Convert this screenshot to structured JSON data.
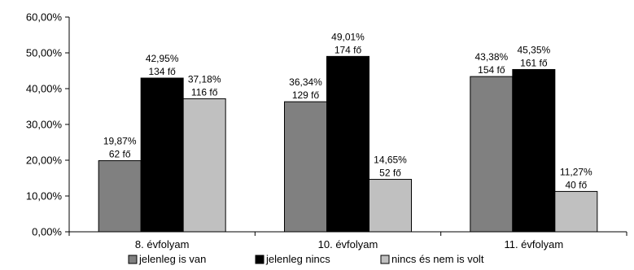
{
  "chart_data": {
    "type": "bar",
    "categories": [
      "8. évfolyam",
      "10. évfolyam",
      "11. évfolyam"
    ],
    "series": [
      {
        "name": "jelenleg is van",
        "color": "#808080",
        "values": [
          19.87,
          36.34,
          43.38
        ],
        "labels": [
          [
            "19,87%",
            "62 fő"
          ],
          [
            "36,34%",
            "129 fő"
          ],
          [
            "43,38%",
            "154 fő"
          ]
        ]
      },
      {
        "name": "jelenleg nincs",
        "color": "#000000",
        "values": [
          42.95,
          49.01,
          45.35
        ],
        "labels": [
          [
            "42,95%",
            "134 fő"
          ],
          [
            "49,01%",
            "174 fő"
          ],
          [
            "45,35%",
            "161 fő"
          ]
        ]
      },
      {
        "name": "nincs és nem is volt",
        "color": "#c0c0c0",
        "values": [
          37.18,
          14.65,
          11.27
        ],
        "labels": [
          [
            "37,18%",
            "116 fő"
          ],
          [
            "14,65%",
            "52 fő"
          ],
          [
            "11,27%",
            "40 fő"
          ]
        ]
      }
    ],
    "ylim": [
      0,
      60
    ],
    "yticks": [
      0,
      10,
      20,
      30,
      40,
      50,
      60
    ],
    "ytick_labels": [
      "0,00%",
      "10,00%",
      "20,00%",
      "30,00%",
      "40,00%",
      "50,00%",
      "60,00%"
    ],
    "legend_position": "bottom",
    "grid": false
  }
}
